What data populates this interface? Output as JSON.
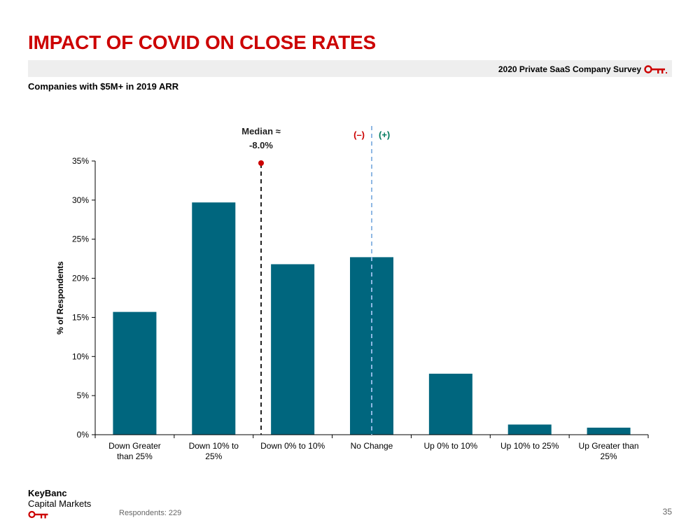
{
  "header": {
    "title": "IMPACT OF COVID ON CLOSE RATES",
    "survey_label": "2020 Private SaaS Company Survey",
    "subtitle": "Companies with $5M+ in 2019 ARR"
  },
  "brand": {
    "accent_red": "#cc0000",
    "bar_color": "#00667e",
    "negative_color": "#cc0000",
    "positive_color": "#007a5e",
    "zero_line_color": "#8fb8e3",
    "key_icon": "key-icon"
  },
  "chart_data": {
    "type": "bar",
    "categories": [
      "Down Greater than 25%",
      "Down 10% to 25%",
      "Down 0% to 10%",
      "No Change",
      "Up 0% to 10%",
      "Up 10% to 25%",
      "Up Greater than 25%"
    ],
    "category_lines": [
      [
        "Down Greater",
        "than 25%"
      ],
      [
        "Down 10% to",
        "25%"
      ],
      [
        "Down 0% to 10%"
      ],
      [
        "No Change"
      ],
      [
        "Up 0% to 10%"
      ],
      [
        "Up 10% to 25%"
      ],
      [
        "Up Greater than",
        "25%"
      ]
    ],
    "values": [
      15.7,
      29.7,
      21.8,
      22.7,
      7.8,
      1.3,
      0.9
    ],
    "ylabel": "% of Respondents",
    "xlabel": "",
    "ylim": [
      0,
      35
    ],
    "yticks": [
      0,
      5,
      10,
      15,
      20,
      25,
      30,
      35
    ],
    "ytick_labels": [
      "0%",
      "5%",
      "10%",
      "15%",
      "20%",
      "25%",
      "30%",
      "35%"
    ],
    "grid": false,
    "legend": "none",
    "annotations": {
      "median_line1": "Median ≈",
      "median_line2": "-8.0%",
      "negative_label": "(–)",
      "positive_label": "(+)"
    }
  },
  "footer": {
    "brand_line1": "KeyBanc",
    "brand_line2": "Capital Markets",
    "respondents": "Respondents: 229",
    "page_number": "35"
  }
}
